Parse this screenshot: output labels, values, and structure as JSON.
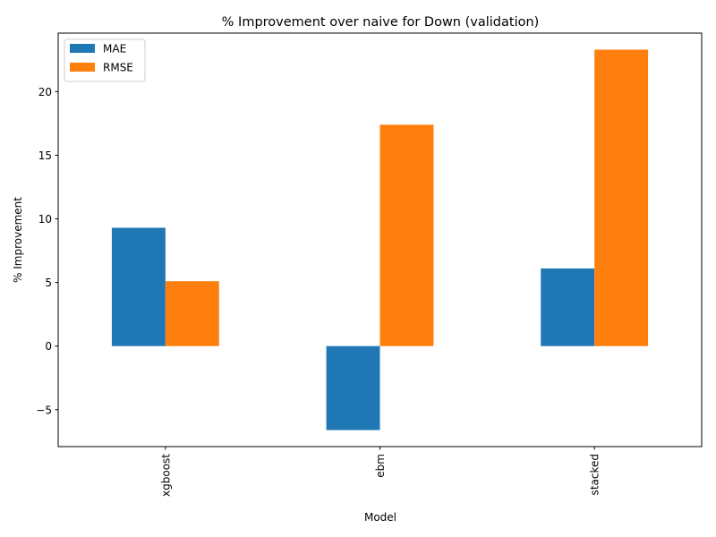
{
  "chart_data": {
    "type": "bar",
    "title": "% Improvement over naive for Down (validation)",
    "xlabel": "Model",
    "ylabel": "% Improvement",
    "categories": [
      "xgboost",
      "ebm",
      "stacked"
    ],
    "series": [
      {
        "name": "MAE",
        "values": [
          9.3,
          -6.6,
          6.1
        ],
        "color": "#1f77b4"
      },
      {
        "name": "RMSE",
        "values": [
          5.1,
          17.4,
          23.3
        ],
        "color": "#ff7f0e"
      }
    ],
    "ylim": [
      -7.9,
      24.6
    ],
    "yticks": [
      -5,
      0,
      5,
      10,
      15,
      20
    ],
    "ytick_labels": [
      "−5",
      "0",
      "5",
      "10",
      "15",
      "20"
    ],
    "grid": false,
    "legend_position": "top-left"
  }
}
